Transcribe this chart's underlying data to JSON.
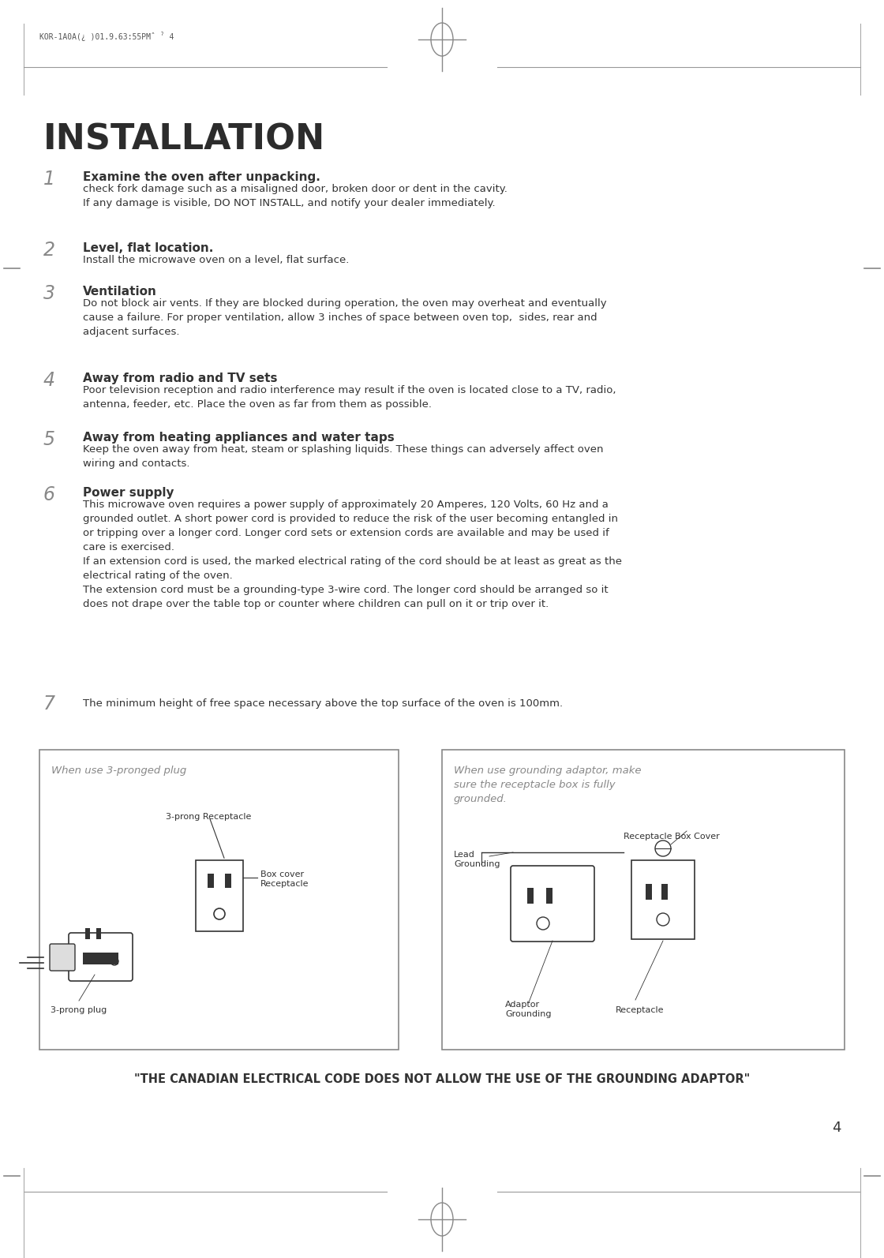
{
  "page_bg": "#ffffff",
  "border_color": "#cccccc",
  "text_color": "#333333",
  "header_text": "KOR-1A0A(¿ )01.9.63:55PMˆ ˀ 4",
  "title": "INSTALLATION",
  "title_fontsize": 32,
  "title_color": "#2c2c2c",
  "items": [
    {
      "number": "1",
      "bold_text": "Examine the oven after unpacking.",
      "normal_text": "check fork damage such as a misaligned door, broken door or dent in the cavity.\nIf any damage is visible, DO NOT INSTALL, and notify your dealer immediately."
    },
    {
      "number": "2",
      "bold_text": "Level, flat location.",
      "normal_text": "Install the microwave oven on a level, flat surface."
    },
    {
      "number": "3",
      "bold_text": "Ventilation",
      "normal_text": "Do not block air vents. If they are blocked during operation, the oven may overheat and eventually\ncause a failure. For proper ventilation, allow 3 inches of space between oven top,  sides, rear and\nadjacent surfaces."
    },
    {
      "number": "4",
      "bold_text": "Away from radio and TV sets",
      "normal_text": "Poor television reception and radio interference may result if the oven is located close to a TV, radio,\nantenna, feeder, etc. Place the oven as far from them as possible."
    },
    {
      "number": "5",
      "bold_text": "Away from heating appliances and water taps",
      "normal_text": "Keep the oven away from heat, steam or splashing liquids. These things can adversely affect oven\nwiring and contacts."
    },
    {
      "number": "6",
      "bold_text": "Power supply",
      "normal_text": "This microwave oven requires a power supply of approximately 20 Amperes, 120 Volts, 60 Hz and a\ngrounded outlet. A short power cord is provided to reduce the risk of the user becoming entangled in\nor tripping over a longer cord. Longer cord sets or extension cords are available and may be used if\ncare is exercised.\nIf an extension cord is used, the marked electrical rating of the cord should be at least as great as the\nelectrical rating of the oven.\nThe extension cord must be a grounding-type 3-wire cord. The longer cord should be arranged so it\ndoes not drape over the table top or counter where children can pull on it or trip over it."
    },
    {
      "number": "7",
      "bold_text": "",
      "normal_text": "The minimum height of free space necessary above the top surface of the oven is 100mm."
    }
  ],
  "box1_title": "When use 3-pronged plug",
  "box2_title": "When use grounding adaptor, make\nsure the receptacle box is fully\ngrounded.",
  "canadian_notice": "\"THE CANADIAN ELECTRICAL CODE DOES NOT ALLOW THE USE OF THE GROUNDING ADAPTOR\"",
  "page_number": "4",
  "number_color": "#888888",
  "box_border_color": "#888888",
  "box_title_color": "#888888",
  "diagram_color": "#333333"
}
